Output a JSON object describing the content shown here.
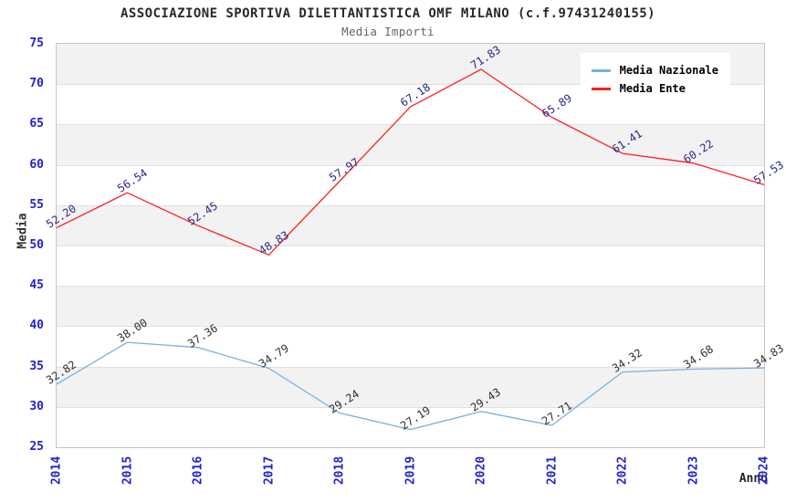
{
  "chart_data": {
    "type": "line",
    "title": "ASSOCIAZIONE SPORTIVA DILETTANTISTICA OMF MILANO (c.f.97431240155)",
    "subtitle": "Media Importi",
    "xlabel": "Anno",
    "ylabel": "Media",
    "ylim": [
      25,
      75
    ],
    "ytick_step": 5,
    "grid": "horizontal-bands",
    "legend_position": "top-right",
    "categories": [
      "2014",
      "2015",
      "2016",
      "2017",
      "2018",
      "2019",
      "2020",
      "2021",
      "2022",
      "2023",
      "2024"
    ],
    "series": [
      {
        "name": "Media Nazionale",
        "color": "#7aafe2",
        "label_color": "#303030",
        "values": [
          32.82,
          38.0,
          37.36,
          34.79,
          29.24,
          27.19,
          29.43,
          27.71,
          34.32,
          34.68,
          34.83
        ]
      },
      {
        "name": "Media Ente",
        "color": "#ff1f1f",
        "label_color": "#28288c",
        "values": [
          52.2,
          56.54,
          52.45,
          48.83,
          57.97,
          67.18,
          71.83,
          65.89,
          61.41,
          60.22,
          57.53
        ]
      }
    ],
    "colors": {
      "tick_label": "#2222cc",
      "band": "#f2f2f2",
      "grid_line": "#e0e0e0",
      "plot_border": "#c5c5c5",
      "title": "#2a2a2a",
      "subtitle": "#666666",
      "legend_text": "#000000",
      "background": "#ffffff"
    }
  }
}
